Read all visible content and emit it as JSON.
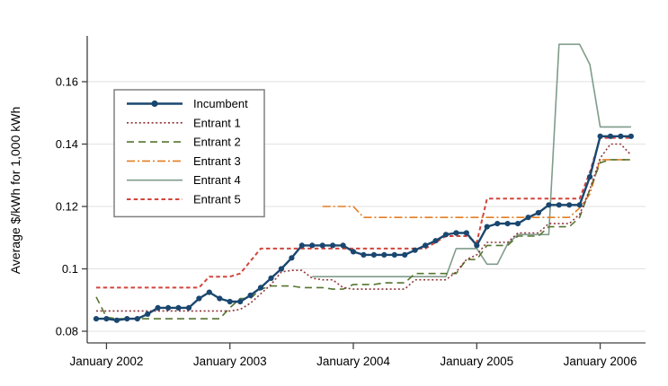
{
  "figure": {
    "background": "#ffffff",
    "grid_color": "#e2e2e2",
    "spine_color": "#404040",
    "text_color": "#000000",
    "legend_border_color": "#808080"
  },
  "chart_data": {
    "type": "line",
    "title": "",
    "xlabel": "",
    "ylabel": "Average $/kWh for 1,000 kWh",
    "ylim": [
      0.0775,
      0.176
    ],
    "grid": "horizontal",
    "legend_position": "upper-left-inside",
    "yticks": [
      0.08,
      0.1,
      0.12,
      0.14,
      0.16
    ],
    "ytick_labels": [
      "0.08",
      "0.1",
      "0.12",
      "0.14",
      "0.16"
    ],
    "xtick_labels": [
      "January 2002",
      "January 2003",
      "January 2004",
      "January 2005",
      "January 2006"
    ],
    "xtick_month_indices": [
      1,
      13,
      25,
      37,
      49
    ],
    "months": [
      "2001-12",
      "2002-01",
      "2002-02",
      "2002-03",
      "2002-04",
      "2002-05",
      "2002-06",
      "2002-07",
      "2002-08",
      "2002-09",
      "2002-10",
      "2002-11",
      "2002-12",
      "2003-01",
      "2003-02",
      "2003-03",
      "2003-04",
      "2003-05",
      "2003-06",
      "2003-07",
      "2003-08",
      "2003-09",
      "2003-10",
      "2003-11",
      "2003-12",
      "2004-01",
      "2004-02",
      "2004-03",
      "2004-04",
      "2004-05",
      "2004-06",
      "2004-07",
      "2004-08",
      "2004-09",
      "2004-10",
      "2004-11",
      "2004-12",
      "2005-01",
      "2005-02",
      "2005-03",
      "2005-04",
      "2005-05",
      "2005-06",
      "2005-07",
      "2005-08",
      "2005-09",
      "2005-10",
      "2005-11",
      "2005-12",
      "2006-01",
      "2006-02",
      "2006-03",
      "2006-04"
    ],
    "series": [
      {
        "name": "Incumbent",
        "color": "#1a476f",
        "style": "solid-markers",
        "values": [
          0.084,
          0.084,
          0.0835,
          0.084,
          0.084,
          0.0855,
          0.0875,
          0.0875,
          0.0875,
          0.0875,
          0.0905,
          0.0925,
          0.0905,
          0.0895,
          0.0895,
          0.0915,
          0.094,
          0.097,
          0.1,
          0.1035,
          0.1075,
          0.1075,
          0.1075,
          0.1075,
          0.1075,
          0.1055,
          0.1045,
          0.1045,
          0.1045,
          0.1045,
          0.1045,
          0.106,
          0.1075,
          0.109,
          0.111,
          0.1115,
          0.1115,
          0.1075,
          0.1135,
          0.1145,
          0.1145,
          0.1145,
          0.1165,
          0.118,
          0.1205,
          0.1205,
          0.1205,
          0.1205,
          0.1295,
          0.1425,
          0.1425,
          0.1425,
          0.1425
        ]
      },
      {
        "name": "Entrant 1",
        "color": "#90353b",
        "style": "dotted",
        "values": [
          0.0865,
          0.0865,
          0.0865,
          0.0865,
          0.0865,
          0.0865,
          0.0865,
          0.0865,
          0.0865,
          0.0865,
          0.0865,
          0.0865,
          0.0865,
          0.0865,
          0.087,
          0.089,
          0.092,
          0.095,
          0.099,
          0.0995,
          0.0995,
          0.097,
          0.0965,
          0.0965,
          0.094,
          0.0935,
          0.0935,
          0.0935,
          0.0935,
          0.0935,
          0.0935,
          0.0965,
          0.0965,
          0.0965,
          0.0965,
          0.099,
          0.103,
          0.1045,
          0.1085,
          0.1085,
          0.1085,
          0.1115,
          0.1115,
          0.1115,
          0.1145,
          0.1145,
          0.1145,
          0.1175,
          0.1255,
          0.1355,
          0.14,
          0.14,
          0.1365
        ]
      },
      {
        "name": "Entrant 2",
        "color": "#55752f",
        "style": "dashed",
        "values": [
          0.091,
          0.0845,
          0.084,
          0.084,
          0.084,
          0.084,
          0.084,
          0.084,
          0.084,
          0.084,
          0.084,
          0.084,
          0.084,
          0.0875,
          0.0905,
          0.0905,
          0.0935,
          0.0945,
          0.0945,
          0.0945,
          0.094,
          0.094,
          0.094,
          0.0935,
          0.0935,
          0.095,
          0.095,
          0.095,
          0.0955,
          0.0955,
          0.0955,
          0.0985,
          0.0985,
          0.0985,
          0.0985,
          0.0985,
          0.103,
          0.103,
          0.1075,
          0.1075,
          0.1075,
          0.1105,
          0.1105,
          0.1105,
          0.1135,
          0.1135,
          0.1135,
          0.1165,
          0.1255,
          0.134,
          0.135,
          0.135,
          0.135
        ]
      },
      {
        "name": "Entrant 3",
        "color": "#e37e23",
        "style": "dashdot",
        "values": [
          null,
          null,
          null,
          null,
          null,
          null,
          null,
          null,
          null,
          null,
          null,
          null,
          null,
          null,
          null,
          null,
          null,
          null,
          null,
          null,
          null,
          null,
          0.12,
          0.12,
          0.12,
          0.12,
          0.1165,
          0.1165,
          0.1165,
          0.1165,
          0.1165,
          0.1165,
          0.1165,
          0.1165,
          0.1165,
          0.1165,
          0.1165,
          0.1165,
          0.1165,
          0.1165,
          0.1165,
          0.1165,
          0.1165,
          0.1165,
          0.1165,
          0.1165,
          0.1165,
          0.1195,
          0.124,
          0.135,
          0.135,
          0.135,
          0.135
        ]
      },
      {
        "name": "Entrant 4",
        "color": "#7f9c8b",
        "style": "solid",
        "values": [
          null,
          null,
          null,
          null,
          null,
          null,
          null,
          null,
          null,
          null,
          null,
          null,
          null,
          null,
          null,
          null,
          null,
          null,
          null,
          null,
          null,
          0.0975,
          0.0975,
          0.0975,
          0.0975,
          0.0975,
          0.0975,
          0.0975,
          0.0975,
          0.0975,
          0.0975,
          0.0975,
          0.0975,
          0.0975,
          0.0975,
          0.1065,
          0.1065,
          0.1065,
          0.1015,
          0.1015,
          0.108,
          0.111,
          0.111,
          0.111,
          0.111,
          0.172,
          0.172,
          0.172,
          0.1655,
          0.1455,
          0.1455,
          0.1455,
          0.1455
        ]
      },
      {
        "name": "Entrant 5",
        "color": "#d2453c",
        "style": "short-dash",
        "values": [
          0.094,
          0.094,
          0.094,
          0.094,
          0.094,
          0.094,
          0.094,
          0.094,
          0.094,
          0.094,
          0.094,
          0.0975,
          0.0975,
          0.0975,
          0.0985,
          0.1025,
          0.1065,
          0.1065,
          0.1065,
          0.1065,
          0.1065,
          0.1065,
          0.1065,
          0.1065,
          0.1065,
          0.1065,
          0.1065,
          0.1065,
          0.1065,
          0.1065,
          0.1065,
          0.1065,
          0.1065,
          0.1085,
          0.1105,
          0.1105,
          0.1105,
          0.1085,
          0.1225,
          0.1225,
          0.1225,
          0.1225,
          0.1225,
          0.1225,
          0.1225,
          0.1225,
          0.1225,
          0.1225,
          0.131,
          0.142,
          0.142,
          0.142,
          0.142
        ]
      }
    ]
  }
}
